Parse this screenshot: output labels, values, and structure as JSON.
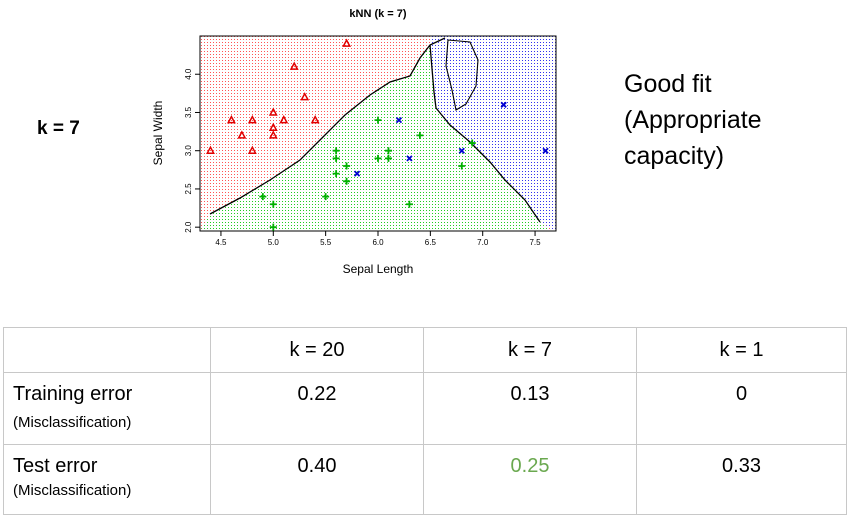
{
  "k_label": "k = 7",
  "side_note": [
    "Good fit",
    "(Appropriate",
    "capacity)"
  ],
  "chart_data": {
    "type": "scatter",
    "title": "kNN (k = 7)",
    "xlabel": "Sepal Length",
    "ylabel": "Sepal Width",
    "xlim": [
      4.3,
      7.7
    ],
    "ylim": [
      1.95,
      4.5
    ],
    "xticks": [
      "4.5",
      "5.0",
      "5.5",
      "6.0",
      "6.5",
      "7.0",
      "7.5"
    ],
    "yticks": [
      "2.0",
      "2.5",
      "3.0",
      "3.5",
      "4.0"
    ],
    "region_colors": {
      "red": "#ff3030",
      "green": "#1ec81e",
      "blue": "#2020e0"
    },
    "series": [
      {
        "marker": "triangle",
        "color": "#e00000",
        "points": [
          [
            5.7,
            4.4
          ],
          [
            5.2,
            4.1
          ],
          [
            5.3,
            3.7
          ],
          [
            4.6,
            3.4
          ],
          [
            4.8,
            3.4
          ],
          [
            5.0,
            3.5
          ],
          [
            5.0,
            3.3
          ],
          [
            5.1,
            3.4
          ],
          [
            5.4,
            3.4
          ],
          [
            4.7,
            3.2
          ],
          [
            5.0,
            3.2
          ],
          [
            4.8,
            3.0
          ],
          [
            4.4,
            3.0
          ]
        ]
      },
      {
        "marker": "plus",
        "color": "#00b000",
        "points": [
          [
            6.0,
            3.4
          ],
          [
            6.4,
            3.2
          ],
          [
            6.9,
            3.1
          ],
          [
            5.6,
            3.0
          ],
          [
            5.6,
            2.9
          ],
          [
            6.0,
            2.9
          ],
          [
            6.1,
            2.9
          ],
          [
            6.1,
            3.0
          ],
          [
            5.7,
            2.8
          ],
          [
            6.8,
            2.8
          ],
          [
            5.6,
            2.7
          ],
          [
            5.7,
            2.6
          ],
          [
            5.5,
            2.4
          ],
          [
            4.9,
            2.4
          ],
          [
            5.0,
            2.3
          ],
          [
            6.3,
            2.3
          ],
          [
            5.0,
            2.0
          ]
        ]
      },
      {
        "marker": "cross",
        "color": "#0000d0",
        "points": [
          [
            7.2,
            3.6
          ],
          [
            6.2,
            3.4
          ],
          [
            6.8,
            3.0
          ],
          [
            7.6,
            3.0
          ],
          [
            6.3,
            2.9
          ],
          [
            5.8,
            2.7
          ]
        ]
      }
    ]
  },
  "table": {
    "headers": [
      "",
      "k = 20",
      "k = 7",
      "k = 1"
    ],
    "rows": [
      {
        "label": "Training error",
        "sublabel": "(Misclassification)",
        "values": [
          "0.22",
          "0.13",
          "0"
        ]
      },
      {
        "label": "Test error",
        "sublabel": "(Misclassification)",
        "values": [
          "0.40",
          "0.25",
          "0.33"
        ]
      }
    ]
  }
}
